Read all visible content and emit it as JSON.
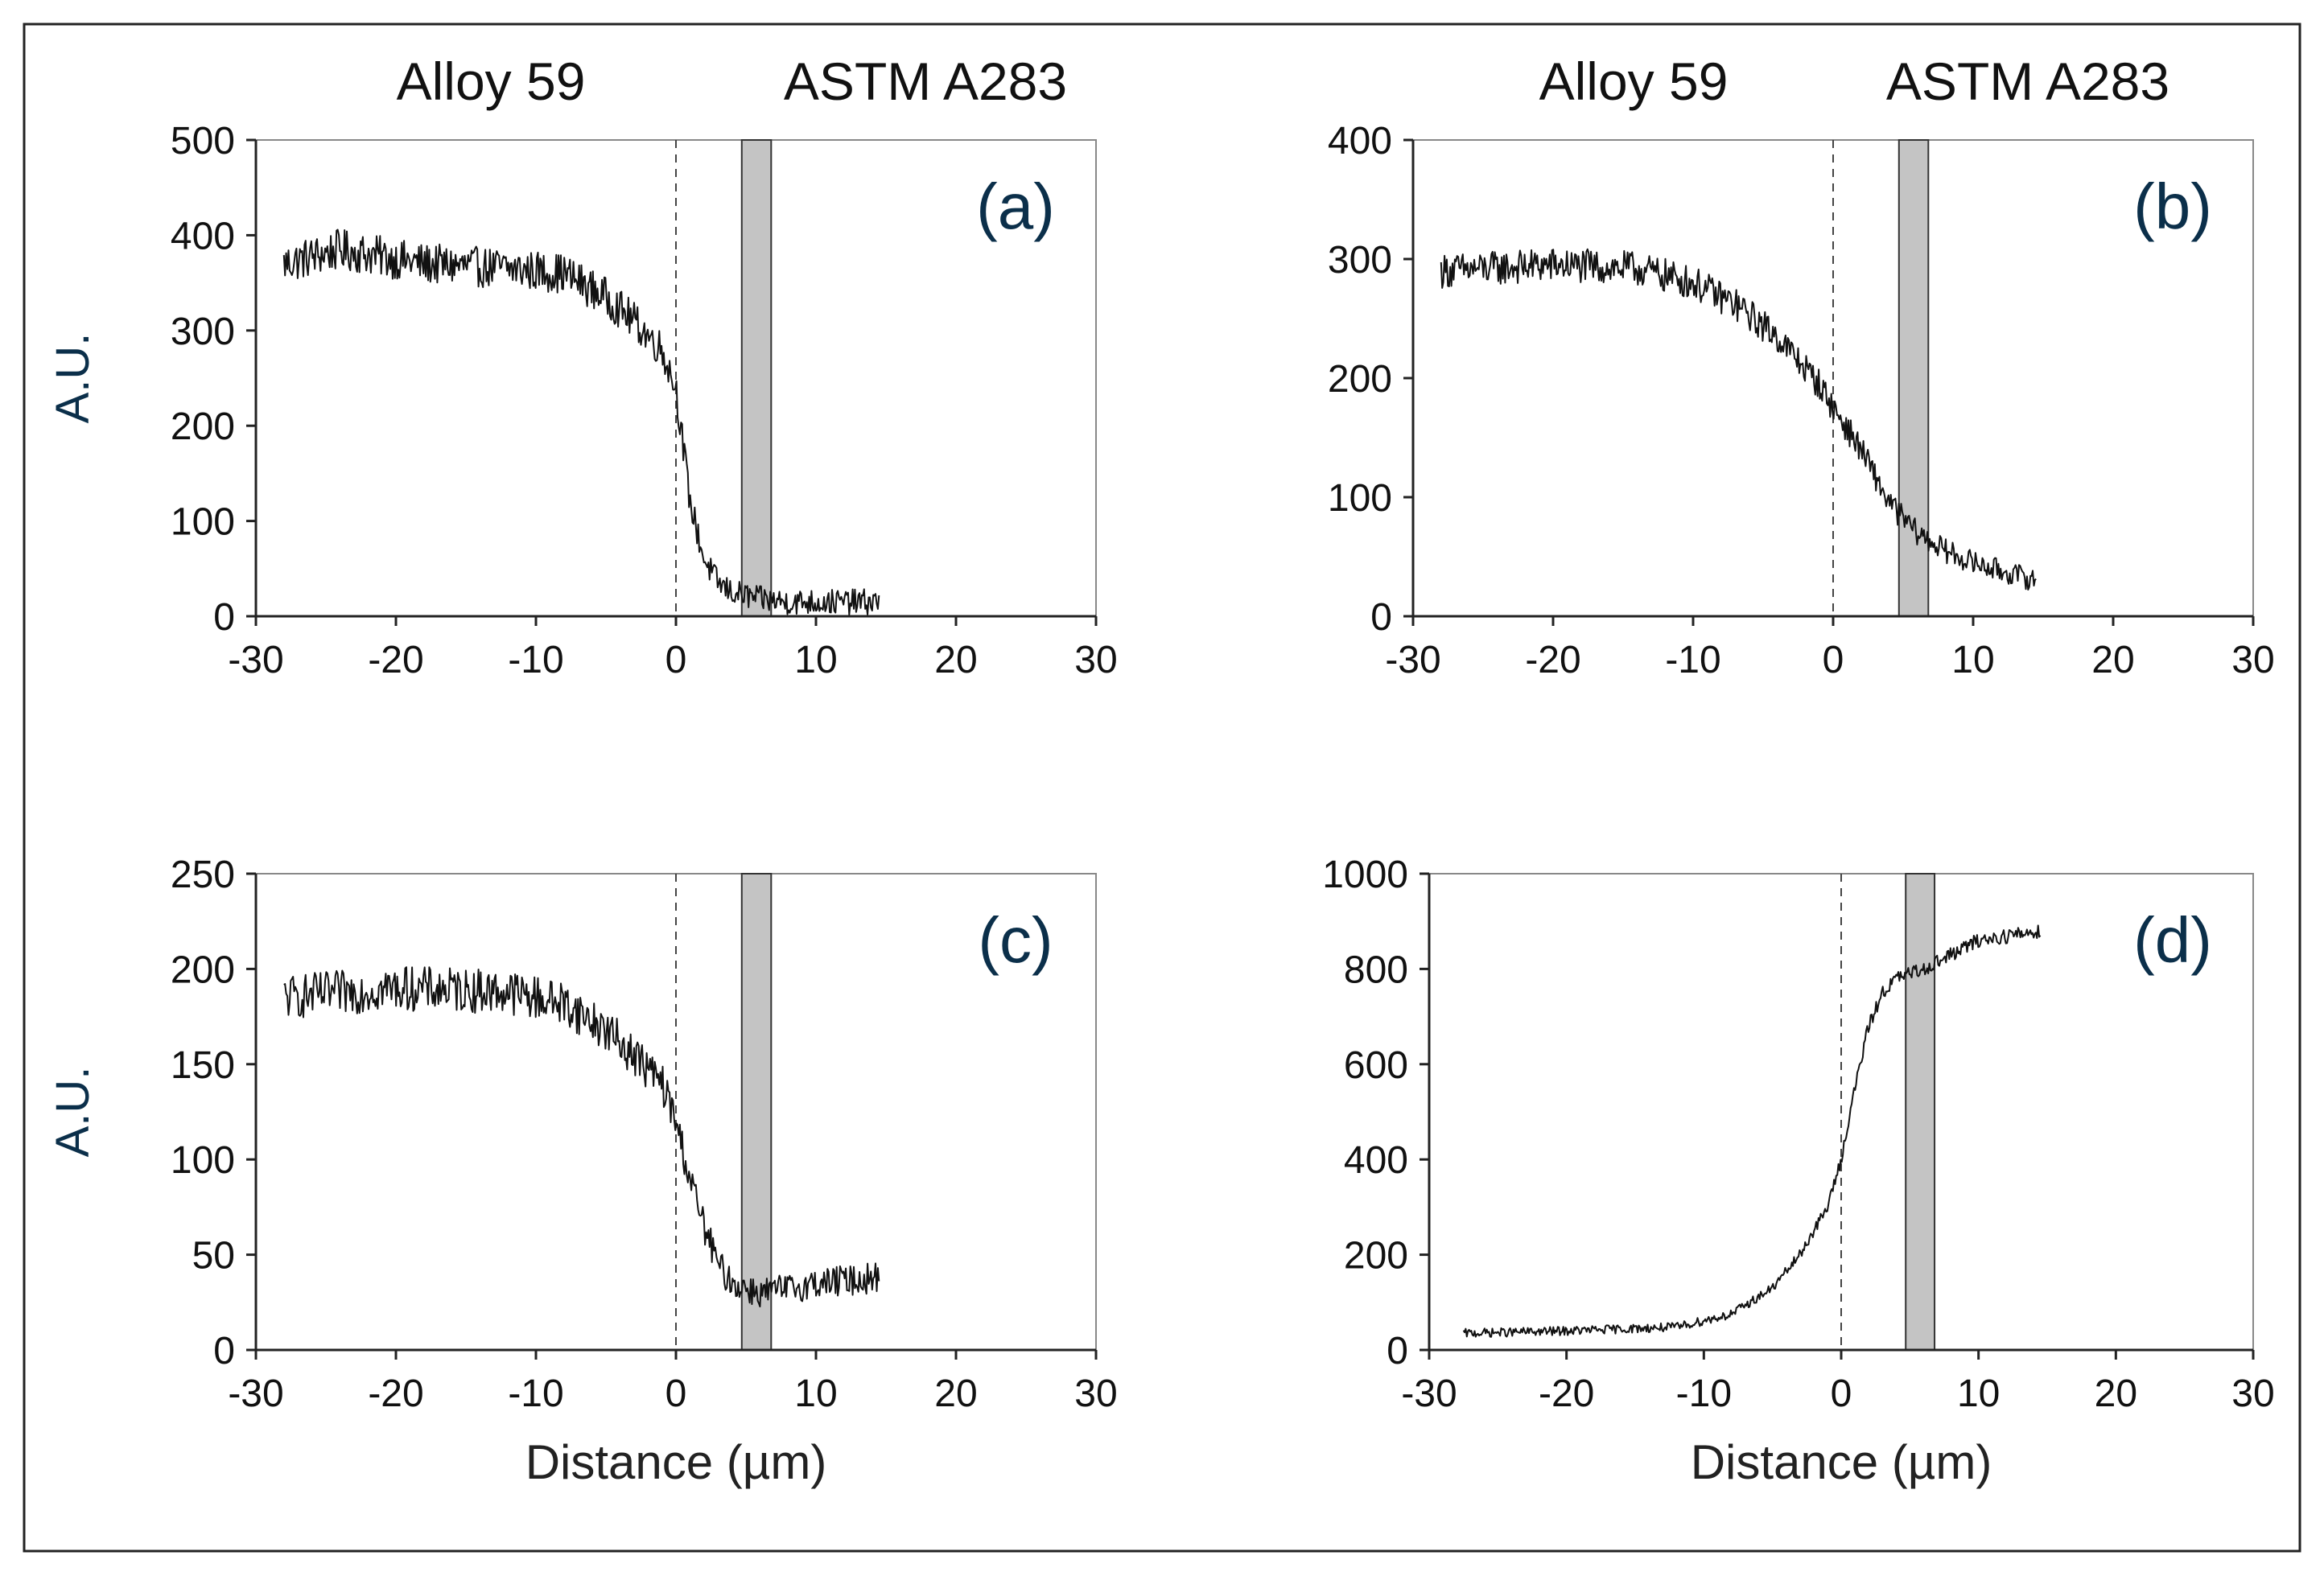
{
  "headers": {
    "left_material": "Alloy 59",
    "right_material": "ASTM A283"
  },
  "chart_data": [
    {
      "type": "line",
      "panel_label": "(a)",
      "ylabel": "A.U.",
      "xlabel": "",
      "xlim": [
        -30,
        30
      ],
      "ylim": [
        0,
        500
      ],
      "xticks": [
        -30,
        -20,
        -10,
        0,
        10,
        20,
        30
      ],
      "yticks": [
        0,
        100,
        200,
        300,
        400,
        500
      ],
      "interface_x": 0,
      "band": [
        4.7,
        6.8
      ],
      "x_range": [
        -28,
        14.5
      ],
      "noise": 22,
      "series": [
        {
          "name": "profile",
          "x": [
            -28,
            -24,
            -18,
            -12,
            -8,
            -5,
            -3,
            -1,
            0,
            1,
            2,
            3,
            4,
            6,
            8,
            10,
            14.5
          ],
          "y": [
            370,
            385,
            370,
            365,
            360,
            335,
            310,
            280,
            240,
            120,
            60,
            35,
            25,
            18,
            15,
            15,
            15
          ]
        }
      ]
    },
    {
      "type": "line",
      "panel_label": "(b)",
      "ylabel": "",
      "xlabel": "",
      "xlim": [
        -30,
        30
      ],
      "ylim": [
        0,
        400
      ],
      "xticks": [
        -30,
        -20,
        -10,
        0,
        10,
        20,
        30
      ],
      "yticks": [
        0,
        100,
        200,
        300,
        400
      ],
      "interface_x": 0,
      "band": [
        4.7,
        6.8
      ],
      "x_range": [
        -28,
        14.5
      ],
      "noise": 15,
      "series": [
        {
          "name": "profile",
          "x": [
            -28,
            -20,
            -14,
            -10,
            -7,
            -4,
            -1,
            0,
            2,
            4,
            6,
            8,
            10,
            12,
            14.5
          ],
          "y": [
            290,
            295,
            292,
            280,
            262,
            235,
            195,
            175,
            140,
            95,
            70,
            55,
            45,
            38,
            30
          ]
        }
      ]
    },
    {
      "type": "line",
      "panel_label": "(c)",
      "ylabel": "A.U.",
      "xlabel": "Distance (µm)",
      "xlim": [
        -30,
        30
      ],
      "ylim": [
        0,
        250
      ],
      "xticks": [
        -30,
        -20,
        -10,
        0,
        10,
        20,
        30
      ],
      "yticks": [
        0,
        50,
        100,
        150,
        200,
        250
      ],
      "interface_x": 0,
      "band": [
        4.7,
        6.8
      ],
      "x_range": [
        -28,
        14.5
      ],
      "noise": 12,
      "series": [
        {
          "name": "profile",
          "x": [
            -28,
            -20,
            -12,
            -8,
            -5,
            -3,
            -1,
            0,
            1,
            2,
            3,
            4,
            6,
            8,
            10,
            14.5
          ],
          "y": [
            185,
            190,
            188,
            182,
            168,
            155,
            140,
            120,
            90,
            65,
            45,
            35,
            30,
            32,
            35,
            38
          ]
        }
      ]
    },
    {
      "type": "line",
      "panel_label": "(d)",
      "ylabel": "",
      "xlabel": "Distance (µm)",
      "xlim": [
        -30,
        30
      ],
      "ylim": [
        0,
        1000
      ],
      "xticks": [
        -30,
        -20,
        -10,
        0,
        10,
        20,
        30
      ],
      "yticks": [
        0,
        200,
        400,
        600,
        800,
        1000
      ],
      "interface_x": 0,
      "band": [
        4.7,
        6.8
      ],
      "x_range": [
        -27.5,
        14.5
      ],
      "noise": 15,
      "series": [
        {
          "name": "profile",
          "x": [
            -27.5,
            -20,
            -12,
            -8,
            -5,
            -3,
            -1,
            0,
            1,
            2,
            3,
            4,
            6,
            8,
            10,
            14.5
          ],
          "y": [
            35,
            40,
            48,
            75,
            130,
            200,
            300,
            400,
            550,
            680,
            750,
            780,
            800,
            830,
            860,
            880
          ]
        }
      ]
    }
  ]
}
